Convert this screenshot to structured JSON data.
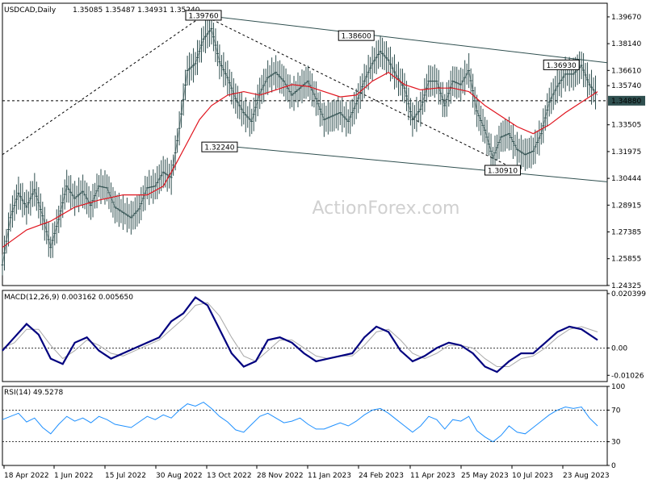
{
  "header": {
    "symbol": "USDCAD,Daily",
    "ohlc": "1.35085 1.35487 1.34931 1.35240"
  },
  "watermark": "ActionForex.com",
  "colors": {
    "price": "#2f4f4f",
    "ma": "#e0141e",
    "macd_main": "#00007f",
    "macd_signal": "#a9a9a9",
    "rsi": "#1e90ff",
    "trendline": "#2f4f4f",
    "price_highlight_bg": "#2f4f4f"
  },
  "chart_data": [
    {
      "type": "line",
      "panel": "price",
      "ylim": [
        1.2432,
        1.4045
      ],
      "y_ticks": [
        "1.39670",
        "1.38140",
        "1.36610",
        "1.35740",
        "1.33505",
        "1.31975",
        "1.30444",
        "1.28915",
        "1.27385",
        "1.25855",
        "1.24325"
      ],
      "y_tick_values": [
        1.3967,
        1.3814,
        1.3661,
        1.3574,
        1.33505,
        1.31975,
        1.30444,
        1.28915,
        1.27385,
        1.25855,
        1.24325
      ],
      "current_price_label": "1.34880",
      "current_price": 1.3488,
      "x_ticks": [
        "18 Apr 2022",
        "1 Jun 2022",
        "15 Jul 2022",
        "30 Aug 2022",
        "13 Oct 2022",
        "28 Nov 2022",
        "11 Jan 2023",
        "24 Feb 2023",
        "11 Apr 2023",
        "25 May 2023",
        "10 Jul 2023",
        "23 Aug 2023"
      ],
      "annotations": [
        {
          "text": "1.39760",
          "date": "13 Oct 2022",
          "value": 1.3976
        },
        {
          "text": "1.32240",
          "date": "13 Oct 2022",
          "value": 1.3224
        },
        {
          "text": "1.38600",
          "date": "24 Feb 2023",
          "value": 1.386
        },
        {
          "text": "1.30910",
          "date": "10 Jul 2023",
          "value": 1.3091
        },
        {
          "text": "1.36930",
          "date": "23 Aug 2023",
          "value": 1.3693
        }
      ],
      "series": [
        {
          "kind": "close",
          "x": [
            0,
            10,
            20,
            30,
            40,
            50,
            60,
            70,
            80,
            90,
            100,
            110,
            120,
            130,
            140,
            150,
            160,
            170,
            180,
            190,
            200,
            210,
            220,
            230,
            240,
            250,
            260,
            270,
            280,
            290,
            300,
            310,
            320,
            330,
            340,
            350,
            360,
            370,
            380,
            390,
            400,
            410,
            420,
            430,
            440,
            450,
            460,
            470,
            480,
            490,
            500,
            510,
            520,
            530,
            540,
            550,
            560,
            570,
            580,
            590,
            600,
            610,
            620,
            630,
            640,
            650,
            660,
            670,
            680,
            690,
            700,
            710,
            720,
            730,
            740
          ],
          "values": [
            1.255,
            1.282,
            1.296,
            1.288,
            1.298,
            1.283,
            1.265,
            1.281,
            1.3,
            1.293,
            1.297,
            1.289,
            1.3,
            1.299,
            1.288,
            1.285,
            1.282,
            1.287,
            1.299,
            1.3,
            1.308,
            1.305,
            1.333,
            1.366,
            1.37,
            1.384,
            1.39,
            1.371,
            1.362,
            1.35,
            1.342,
            1.337,
            1.353,
            1.362,
            1.365,
            1.36,
            1.352,
            1.356,
            1.36,
            1.35,
            1.338,
            1.34,
            1.342,
            1.337,
            1.347,
            1.36,
            1.37,
            1.377,
            1.372,
            1.363,
            1.356,
            1.338,
            1.344,
            1.36,
            1.36,
            1.346,
            1.36,
            1.358,
            1.366,
            1.343,
            1.332,
            1.316,
            1.328,
            1.33,
            1.321,
            1.318,
            1.32,
            1.33,
            1.348,
            1.357,
            1.364,
            1.364,
            1.369,
            1.358,
            1.352
          ]
        },
        {
          "kind": "moving_average",
          "x": [
            0,
            30,
            60,
            90,
            120,
            150,
            180,
            200,
            215,
            230,
            245,
            260,
            280,
            300,
            320,
            340,
            360,
            380,
            400,
            420,
            440,
            460,
            480,
            500,
            520,
            540,
            560,
            580,
            600,
            620,
            640,
            660,
            680,
            700,
            720,
            740
          ],
          "values": [
            1.265,
            1.275,
            1.28,
            1.288,
            1.292,
            1.295,
            1.295,
            1.3,
            1.312,
            1.325,
            1.338,
            1.346,
            1.352,
            1.354,
            1.352,
            1.355,
            1.358,
            1.357,
            1.354,
            1.351,
            1.352,
            1.36,
            1.365,
            1.358,
            1.355,
            1.356,
            1.356,
            1.354,
            1.346,
            1.34,
            1.334,
            1.33,
            1.335,
            1.342,
            1.348,
            1.354
          ]
        }
      ]
    },
    {
      "type": "line",
      "panel": "macd",
      "title": "MACD(12,26,9) 0.003162 0.005650",
      "ylim": [
        -0.0126,
        0.0216
      ],
      "y_ticks": [
        "0.020399",
        "0.00",
        "-0.01026"
      ],
      "y_tick_values": [
        0.020399,
        0.0,
        -0.01026
      ],
      "series": [
        {
          "kind": "main",
          "x": [
            0,
            15,
            30,
            45,
            60,
            75,
            90,
            105,
            120,
            135,
            150,
            165,
            180,
            195,
            210,
            225,
            240,
            255,
            270,
            285,
            300,
            315,
            330,
            345,
            360,
            375,
            390,
            405,
            420,
            435,
            450,
            465,
            480,
            495,
            510,
            525,
            540,
            555,
            570,
            585,
            600,
            615,
            630,
            645,
            660,
            675,
            690,
            705,
            720,
            740
          ],
          "values": [
            -0.001,
            0.004,
            0.009,
            0.005,
            -0.004,
            -0.006,
            0.002,
            0.004,
            -0.001,
            -0.004,
            -0.002,
            0.0,
            0.002,
            0.004,
            0.01,
            0.013,
            0.019,
            0.016,
            0.007,
            -0.002,
            -0.007,
            -0.005,
            0.003,
            0.004,
            0.002,
            -0.002,
            -0.005,
            -0.004,
            -0.003,
            -0.002,
            0.004,
            0.008,
            0.006,
            -0.001,
            -0.005,
            -0.003,
            -0.0,
            0.002,
            0.001,
            -0.002,
            -0.007,
            -0.009,
            -0.005,
            -0.002,
            -0.002,
            0.002,
            0.006,
            0.008,
            0.007,
            0.003
          ]
        },
        {
          "kind": "signal",
          "x": [
            0,
            15,
            30,
            45,
            60,
            75,
            90,
            105,
            120,
            135,
            150,
            165,
            180,
            195,
            210,
            225,
            240,
            255,
            270,
            285,
            300,
            315,
            330,
            345,
            360,
            375,
            390,
            405,
            420,
            435,
            450,
            465,
            480,
            495,
            510,
            525,
            540,
            555,
            570,
            585,
            600,
            615,
            630,
            645,
            660,
            675,
            690,
            705,
            720,
            740
          ],
          "values": [
            0.0,
            0.002,
            0.007,
            0.007,
            0.001,
            -0.004,
            -0.001,
            0.003,
            0.001,
            -0.002,
            -0.003,
            -0.001,
            0.001,
            0.003,
            0.007,
            0.011,
            0.016,
            0.017,
            0.012,
            0.004,
            -0.003,
            -0.005,
            -0.001,
            0.003,
            0.003,
            0.0,
            -0.003,
            -0.004,
            -0.003,
            -0.003,
            0.001,
            0.006,
            0.007,
            0.003,
            -0.002,
            -0.004,
            -0.002,
            0.001,
            0.001,
            -0.0,
            -0.004,
            -0.007,
            -0.007,
            -0.004,
            -0.003,
            0.0,
            0.004,
            0.007,
            0.008,
            0.006
          ]
        }
      ]
    },
    {
      "type": "line",
      "panel": "rsi",
      "title": "RSI(14) 49.5278",
      "ylim": [
        0,
        100
      ],
      "y_ticks": [
        "100",
        "70",
        "30",
        "0"
      ],
      "y_tick_values": [
        100,
        70,
        30,
        0
      ],
      "levels": [
        70,
        30
      ],
      "series": [
        {
          "kind": "rsi",
          "x": [
            0,
            10,
            20,
            30,
            40,
            50,
            60,
            70,
            80,
            90,
            100,
            110,
            120,
            130,
            140,
            150,
            160,
            170,
            180,
            190,
            200,
            210,
            220,
            230,
            240,
            250,
            260,
            270,
            280,
            290,
            300,
            310,
            320,
            330,
            340,
            350,
            360,
            370,
            380,
            390,
            400,
            410,
            420,
            430,
            440,
            450,
            460,
            470,
            480,
            490,
            500,
            510,
            520,
            530,
            540,
            550,
            560,
            570,
            580,
            590,
            600,
            610,
            620,
            630,
            640,
            650,
            660,
            670,
            680,
            690,
            700,
            710,
            720,
            730,
            740
          ],
          "values": [
            58,
            62,
            66,
            55,
            60,
            48,
            40,
            52,
            62,
            56,
            60,
            54,
            62,
            58,
            52,
            50,
            48,
            55,
            62,
            58,
            64,
            60,
            70,
            78,
            75,
            80,
            72,
            62,
            55,
            45,
            42,
            52,
            62,
            66,
            60,
            54,
            56,
            60,
            52,
            46,
            46,
            50,
            54,
            50,
            56,
            64,
            70,
            72,
            66,
            58,
            50,
            42,
            50,
            62,
            58,
            46,
            58,
            56,
            62,
            44,
            36,
            30,
            38,
            50,
            42,
            40,
            48,
            56,
            64,
            70,
            74,
            72,
            74,
            60,
            50
          ]
        }
      ]
    }
  ]
}
